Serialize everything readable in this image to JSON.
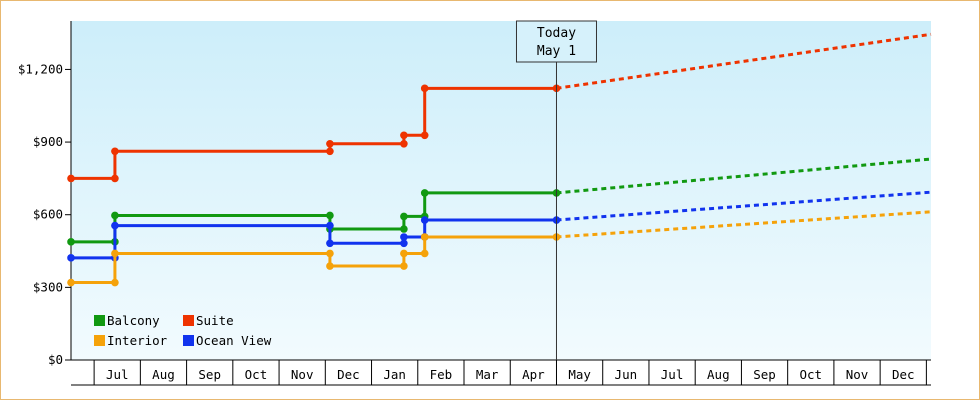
{
  "chart_data": {
    "type": "line",
    "step": true,
    "title": "",
    "xlabel": "",
    "ylabel": "",
    "ylim": [
      0,
      1400
    ],
    "y_ticks": [
      {
        "value": 0,
        "label": "$0"
      },
      {
        "value": 300,
        "label": "$300"
      },
      {
        "value": 600,
        "label": "$600"
      },
      {
        "value": 900,
        "label": "$900"
      },
      {
        "value": 1200,
        "label": "$1,200"
      }
    ],
    "x_range": [
      0,
      18.6
    ],
    "x_ticks": [
      {
        "value": 1,
        "label": "Jul"
      },
      {
        "value": 2,
        "label": "Aug"
      },
      {
        "value": 3,
        "label": "Sep"
      },
      {
        "value": 4,
        "label": "Oct"
      },
      {
        "value": 5,
        "label": "Nov"
      },
      {
        "value": 6,
        "label": "Dec"
      },
      {
        "value": 7,
        "label": "Jan"
      },
      {
        "value": 8,
        "label": "Feb"
      },
      {
        "value": 9,
        "label": "Mar"
      },
      {
        "value": 10,
        "label": "Apr"
      },
      {
        "value": 11,
        "label": "May"
      },
      {
        "value": 12,
        "label": "Jun"
      },
      {
        "value": 13,
        "label": "Jul"
      },
      {
        "value": 14,
        "label": "Aug"
      },
      {
        "value": 15,
        "label": "Sep"
      },
      {
        "value": 16,
        "label": "Oct"
      },
      {
        "value": 17,
        "label": "Nov"
      },
      {
        "value": 18,
        "label": "Dec"
      }
    ],
    "today": {
      "x": 10.5,
      "line1": "Today",
      "line2": "May 1"
    },
    "grid": false,
    "legend_position": "bottom-left",
    "series": [
      {
        "name": "Suite",
        "color": "#ee3300",
        "points": [
          [
            0,
            750
          ],
          [
            0.95,
            750
          ],
          [
            0.95,
            862
          ],
          [
            5.6,
            862
          ],
          [
            5.6,
            893
          ],
          [
            7.2,
            893
          ],
          [
            7.2,
            928
          ],
          [
            7.65,
            928
          ],
          [
            7.65,
            1122
          ],
          [
            10.5,
            1122
          ]
        ],
        "markers": [
          [
            0,
            750
          ],
          [
            0.95,
            750
          ],
          [
            0.95,
            862
          ],
          [
            5.6,
            862
          ],
          [
            5.6,
            893
          ],
          [
            7.2,
            893
          ],
          [
            7.2,
            928
          ],
          [
            7.65,
            928
          ],
          [
            7.65,
            1122
          ],
          [
            10.5,
            1122
          ]
        ],
        "forecast": [
          [
            10.5,
            1122
          ],
          [
            18.6,
            1345
          ]
        ]
      },
      {
        "name": "Balcony",
        "color": "#119911",
        "points": [
          [
            0,
            488
          ],
          [
            0.95,
            488
          ],
          [
            0.95,
            597
          ],
          [
            5.6,
            597
          ],
          [
            5.6,
            541
          ],
          [
            7.2,
            541
          ],
          [
            7.2,
            593
          ],
          [
            7.65,
            593
          ],
          [
            7.65,
            690
          ],
          [
            10.5,
            690
          ]
        ],
        "markers": [
          [
            0,
            488
          ],
          [
            0.95,
            488
          ],
          [
            0.95,
            597
          ],
          [
            5.6,
            597
          ],
          [
            5.6,
            541
          ],
          [
            7.2,
            541
          ],
          [
            7.2,
            593
          ],
          [
            7.65,
            593
          ],
          [
            7.65,
            690
          ],
          [
            10.5,
            690
          ]
        ],
        "forecast": [
          [
            10.5,
            690
          ],
          [
            18.6,
            830
          ]
        ]
      },
      {
        "name": "Ocean View",
        "color": "#1133ee",
        "points": [
          [
            0,
            422
          ],
          [
            0.95,
            422
          ],
          [
            0.95,
            555
          ],
          [
            5.6,
            555
          ],
          [
            5.6,
            482
          ],
          [
            7.2,
            482
          ],
          [
            7.2,
            508
          ],
          [
            7.65,
            508
          ],
          [
            7.65,
            578
          ],
          [
            10.5,
            578
          ]
        ],
        "markers": [
          [
            0,
            422
          ],
          [
            0.95,
            422
          ],
          [
            0.95,
            555
          ],
          [
            5.6,
            555
          ],
          [
            5.6,
            482
          ],
          [
            7.2,
            482
          ],
          [
            7.2,
            508
          ],
          [
            7.65,
            508
          ],
          [
            7.65,
            578
          ],
          [
            10.5,
            578
          ]
        ],
        "forecast": [
          [
            10.5,
            578
          ],
          [
            18.6,
            693
          ]
        ]
      },
      {
        "name": "Interior",
        "color": "#f5a20a",
        "points": [
          [
            0,
            320
          ],
          [
            0.95,
            320
          ],
          [
            0.95,
            440
          ],
          [
            5.6,
            440
          ],
          [
            5.6,
            388
          ],
          [
            7.2,
            388
          ],
          [
            7.2,
            440
          ],
          [
            7.65,
            440
          ],
          [
            7.65,
            508
          ],
          [
            10.5,
            508
          ]
        ],
        "markers": [
          [
            0,
            320
          ],
          [
            0.95,
            320
          ],
          [
            0.95,
            440
          ],
          [
            5.6,
            440
          ],
          [
            5.6,
            388
          ],
          [
            7.2,
            388
          ],
          [
            7.2,
            440
          ],
          [
            7.65,
            440
          ],
          [
            7.65,
            508
          ],
          [
            10.5,
            508
          ]
        ],
        "forecast": [
          [
            10.5,
            508
          ],
          [
            18.6,
            612
          ]
        ]
      }
    ],
    "legend": [
      {
        "name": "Balcony",
        "color": "#119911"
      },
      {
        "name": "Suite",
        "color": "#ee3300"
      },
      {
        "name": "Interior",
        "color": "#f5a20a"
      },
      {
        "name": "Ocean View",
        "color": "#1133ee"
      }
    ]
  }
}
